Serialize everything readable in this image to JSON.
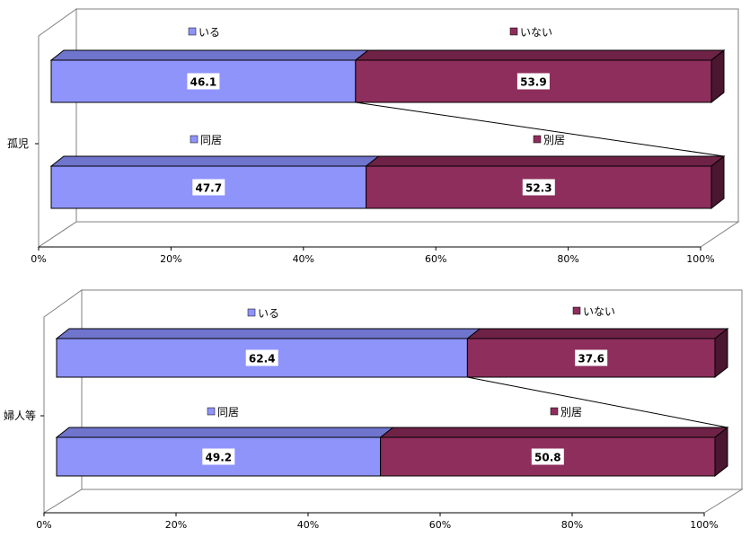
{
  "colors": {
    "blue_front": "#8f94fb",
    "blue_top": "#6f74cc",
    "maroon_front": "#8e2e5c",
    "maroon_top": "#6e2246",
    "maroon_side": "#4a1630",
    "label_box": "#ffffff"
  },
  "chart_data": [
    {
      "type": "bar",
      "orientation": "horizontal-stacked-percent",
      "group_label": "孤児",
      "xlim": [
        0,
        100
      ],
      "x_ticks": [
        "0%",
        "20%",
        "40%",
        "60%",
        "80%",
        "100%"
      ],
      "bars": [
        {
          "legend": [
            "いる",
            "いない"
          ],
          "values": [
            46.1,
            53.9
          ]
        },
        {
          "legend": [
            "同居",
            "別居"
          ],
          "values": [
            47.7,
            52.3
          ]
        }
      ]
    },
    {
      "type": "bar",
      "orientation": "horizontal-stacked-percent",
      "group_label": "婦人等",
      "xlim": [
        0,
        100
      ],
      "x_ticks": [
        "0%",
        "20%",
        "40%",
        "60%",
        "80%",
        "100%"
      ],
      "bars": [
        {
          "legend": [
            "いる",
            "いない"
          ],
          "values": [
            62.4,
            37.6
          ]
        },
        {
          "legend": [
            "同居",
            "別居"
          ],
          "values": [
            49.2,
            50.8
          ]
        }
      ]
    }
  ]
}
